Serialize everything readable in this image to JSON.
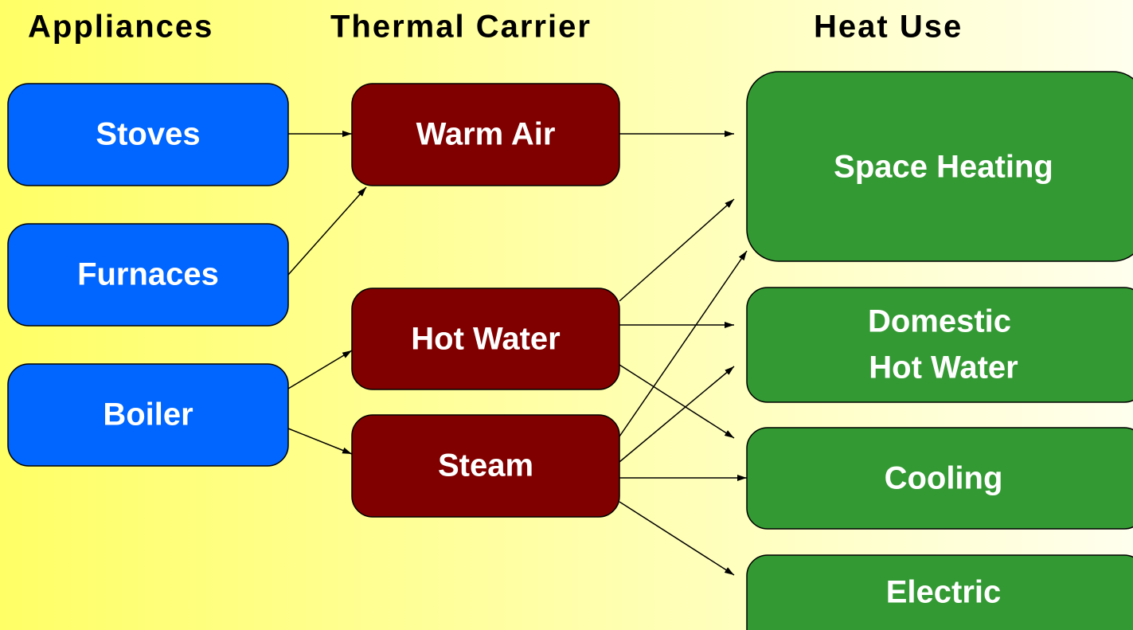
{
  "headers": [
    "Appliances",
    "Thermal Carrier",
    "Heat Use"
  ],
  "nodes": [
    {
      "label": "Stoves"
    },
    {
      "label": "Furnaces"
    },
    {
      "label": "Boiler"
    },
    {
      "label": "Warm Air"
    },
    {
      "label": "Hot Water"
    },
    {
      "label": "Steam"
    },
    {
      "label": "Space Heating"
    },
    {
      "lines": [
        "Domestic",
        "Hot Water"
      ]
    },
    {
      "label": "Cooling"
    },
    {
      "label": "Electric"
    }
  ]
}
